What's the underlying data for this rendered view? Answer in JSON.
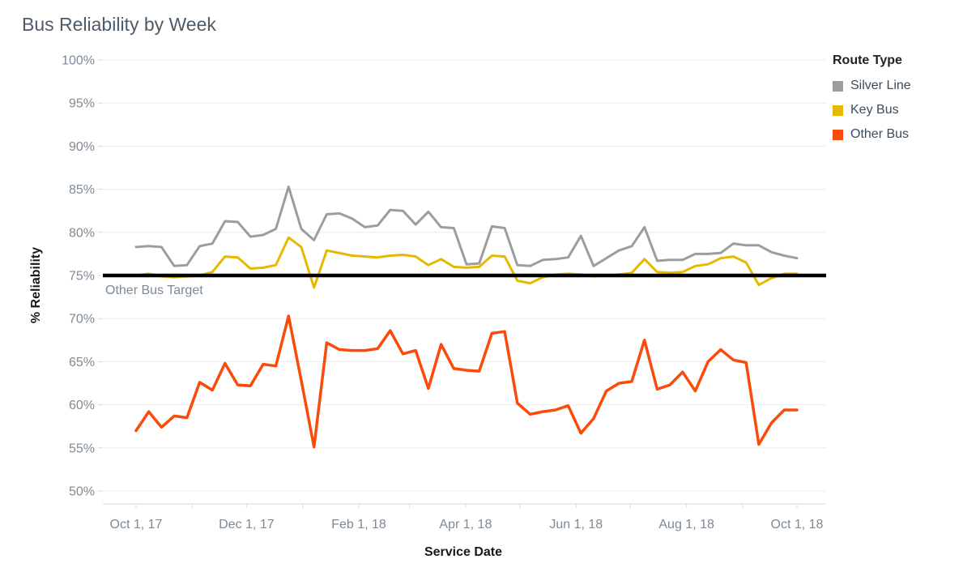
{
  "title": "Bus Reliability by Week",
  "legend": {
    "title": "Route Type",
    "items": [
      {
        "label": "Silver Line",
        "color": "#9d9d9d"
      },
      {
        "label": "Key Bus",
        "color": "#e8b800"
      },
      {
        "label": "Other Bus",
        "color": "#fa4b0a"
      }
    ]
  },
  "chart_data": {
    "type": "line",
    "title": "Bus Reliability by Week",
    "xlabel": "Service Date",
    "ylabel": "% Reliability",
    "ylim": [
      50,
      100
    ],
    "grid": true,
    "legend_position": "top-right",
    "x_unit": "week",
    "x_weeks_span": "Oct 1, 2017 through Sep 30, 2018 (53 weekly points)",
    "y_ticks": [
      {
        "value": 100,
        "label": "100%"
      },
      {
        "value": 95,
        "label": "95%"
      },
      {
        "value": 90,
        "label": "90%"
      },
      {
        "value": 85,
        "label": "85%"
      },
      {
        "value": 80,
        "label": "80%"
      },
      {
        "value": 75,
        "label": "75%"
      },
      {
        "value": 70,
        "label": "70%"
      },
      {
        "value": 65,
        "label": "65%"
      },
      {
        "value": 60,
        "label": "60%"
      },
      {
        "value": 55,
        "label": "55%"
      },
      {
        "value": 50,
        "label": "50%"
      }
    ],
    "x_ticks": [
      {
        "day": 0,
        "label": "Oct 1, 17"
      },
      {
        "day": 61,
        "label": "Dec 1, 17"
      },
      {
        "day": 123,
        "label": "Feb 1, 18"
      },
      {
        "day": 182,
        "label": "Apr 1, 18"
      },
      {
        "day": 243,
        "label": "Jun 1, 18"
      },
      {
        "day": 304,
        "label": "Aug 1, 18"
      },
      {
        "day": 365,
        "label": "Oct 1, 18"
      }
    ],
    "x_minor_tick_days": [
      0,
      31,
      61,
      92,
      123,
      151,
      182,
      212,
      243,
      273,
      304,
      335,
      365
    ],
    "reference_line": {
      "value": 75,
      "label": "Other Bus Target",
      "color": "#000000"
    },
    "series": [
      {
        "name": "Silver Line",
        "color": "#9d9d9d",
        "line_width": 3,
        "values": [
          78.3,
          78.4,
          78.3,
          76.1,
          76.2,
          78.4,
          78.7,
          81.3,
          81.2,
          79.5,
          79.7,
          80.4,
          85.3,
          80.4,
          79.1,
          82.1,
          82.2,
          81.6,
          80.6,
          80.8,
          82.6,
          82.5,
          80.9,
          82.4,
          80.6,
          80.5,
          76.3,
          76.4,
          80.7,
          80.5,
          76.2,
          76.1,
          76.8,
          76.9,
          77.1,
          79.6,
          76.1,
          77.0,
          77.9,
          78.4,
          80.6,
          76.7,
          76.8,
          76.8,
          77.5,
          77.5,
          77.6,
          78.7,
          78.5,
          78.5,
          77.7,
          77.3,
          77.0
        ]
      },
      {
        "name": "Key Bus",
        "color": "#e8b800",
        "line_width": 3,
        "values": [
          75.0,
          75.2,
          74.9,
          74.8,
          74.9,
          75.0,
          75.4,
          77.2,
          77.1,
          75.8,
          75.9,
          76.2,
          79.4,
          78.3,
          73.6,
          77.9,
          77.6,
          77.3,
          77.2,
          77.1,
          77.3,
          77.4,
          77.2,
          76.2,
          76.9,
          76.0,
          75.9,
          76.0,
          77.3,
          77.2,
          74.4,
          74.1,
          74.8,
          75.1,
          75.2,
          75.1,
          74.9,
          75.0,
          75.1,
          75.3,
          76.9,
          75.4,
          75.3,
          75.4,
          76.1,
          76.3,
          77.0,
          77.2,
          76.5,
          73.9,
          74.7,
          75.2,
          75.2
        ]
      },
      {
        "name": "Other Bus",
        "color": "#fa4b0a",
        "line_width": 3.5,
        "values": [
          57.0,
          59.2,
          57.4,
          58.7,
          58.5,
          62.6,
          61.7,
          64.8,
          62.3,
          62.2,
          64.7,
          64.5,
          70.3,
          62.8,
          55.1,
          67.2,
          66.4,
          66.3,
          66.3,
          66.5,
          68.6,
          65.9,
          66.3,
          61.9,
          67.0,
          64.2,
          64.0,
          63.9,
          68.3,
          68.5,
          60.2,
          58.9,
          59.2,
          59.4,
          59.9,
          56.7,
          58.4,
          61.6,
          62.5,
          62.7,
          67.5,
          61.8,
          62.3,
          63.8,
          61.6,
          65.0,
          66.4,
          65.2,
          64.9,
          55.4,
          57.9,
          59.4,
          59.4
        ]
      }
    ]
  }
}
